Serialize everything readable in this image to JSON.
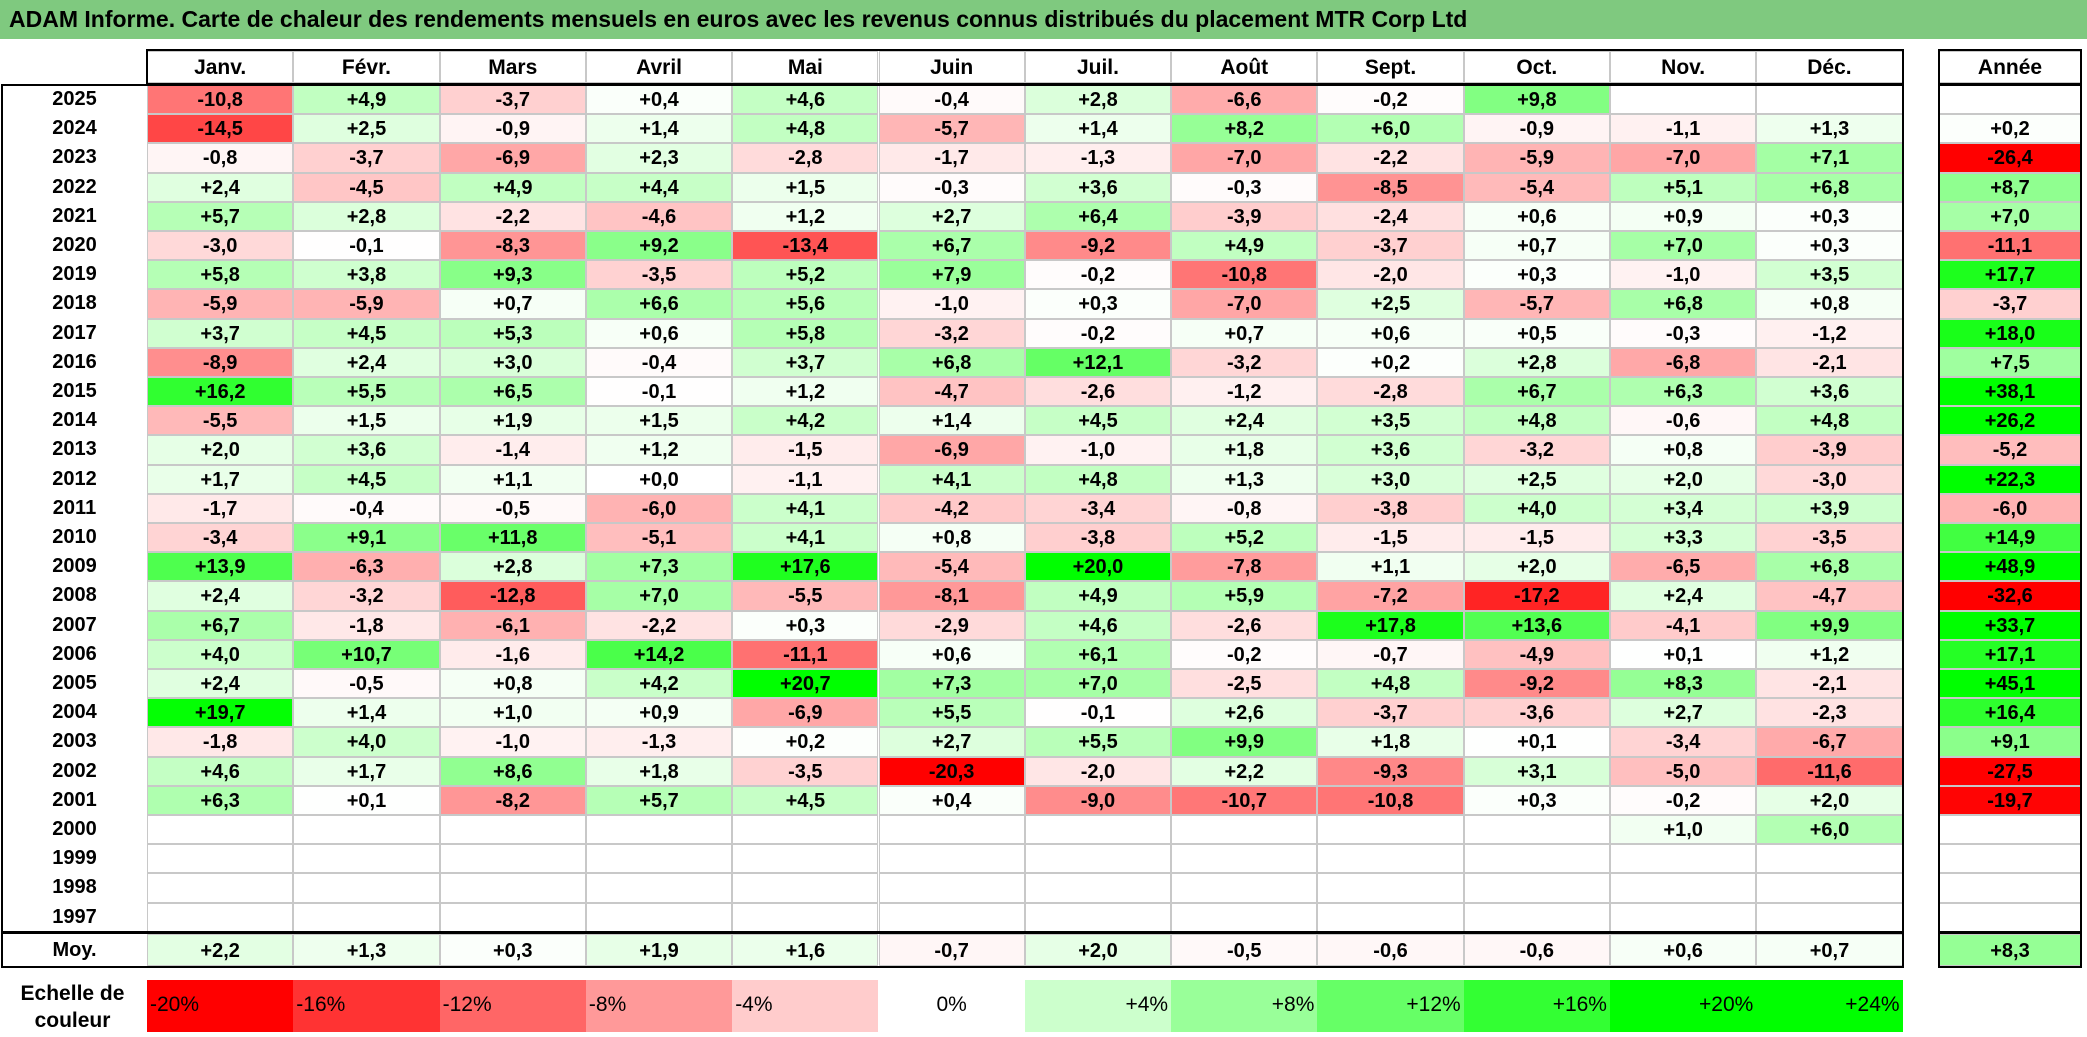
{
  "title": "ADAM Informe. Carte de chaleur des rendements mensuels en euros avec les revenus connus distribués du placement MTR Corp Ltd",
  "months": [
    "Janv.",
    "Févr.",
    "Mars",
    "Avril",
    "Mai",
    "Juin",
    "Juil.",
    "Août",
    "Sept.",
    "Oct.",
    "Nov.",
    "Déc."
  ],
  "year_header": "Année",
  "avg_label": "Moy.",
  "scale_label": "Echelle de couleur",
  "chart_data": {
    "type": "heatmap",
    "title": "ADAM Informe. Carte de chaleur des rendements mensuels en euros avec les revenus connus distribués du placement MTR Corp Ltd",
    "columns": [
      "Janv.",
      "Févr.",
      "Mars",
      "Avril",
      "Mai",
      "Juin",
      "Juil.",
      "Août",
      "Sept.",
      "Oct.",
      "Nov.",
      "Déc.",
      "Année"
    ],
    "rows": [
      {
        "year": "2025",
        "values": [
          -10.8,
          4.9,
          -3.7,
          0.4,
          4.6,
          -0.4,
          2.8,
          -6.6,
          -0.2,
          9.8,
          null,
          null
        ],
        "annual": null
      },
      {
        "year": "2024",
        "values": [
          -14.5,
          2.5,
          -0.9,
          1.4,
          4.8,
          -5.7,
          1.4,
          8.2,
          6.0,
          -0.9,
          -1.1,
          1.3
        ],
        "annual": 0.2
      },
      {
        "year": "2023",
        "values": [
          -0.8,
          -3.7,
          -6.9,
          2.3,
          -2.8,
          -1.7,
          -1.3,
          -7.0,
          -2.2,
          -5.9,
          -7.0,
          7.1
        ],
        "annual": -26.4
      },
      {
        "year": "2022",
        "values": [
          2.4,
          -4.5,
          4.9,
          4.4,
          1.5,
          -0.3,
          3.6,
          -0.3,
          -8.5,
          -5.4,
          5.1,
          6.8
        ],
        "annual": 8.7
      },
      {
        "year": "2021",
        "values": [
          5.7,
          2.8,
          -2.2,
          -4.6,
          1.2,
          2.7,
          6.4,
          -3.9,
          -2.4,
          0.6,
          0.9,
          0.3
        ],
        "annual": 7.0
      },
      {
        "year": "2020",
        "values": [
          -3.0,
          -0.1,
          -8.3,
          9.2,
          -13.4,
          6.7,
          -9.2,
          4.9,
          -3.7,
          0.7,
          7.0,
          0.3
        ],
        "annual": -11.1
      },
      {
        "year": "2019",
        "values": [
          5.8,
          3.8,
          9.3,
          -3.5,
          5.2,
          7.9,
          -0.2,
          -10.8,
          -2.0,
          0.3,
          -1.0,
          3.5
        ],
        "annual": 17.7
      },
      {
        "year": "2018",
        "values": [
          -5.9,
          -5.9,
          0.7,
          6.6,
          5.6,
          -1.0,
          0.3,
          -7.0,
          2.5,
          -5.7,
          6.8,
          0.8
        ],
        "annual": -3.7
      },
      {
        "year": "2017",
        "values": [
          3.7,
          4.5,
          5.3,
          0.6,
          5.8,
          -3.2,
          -0.2,
          0.7,
          0.6,
          0.5,
          -0.3,
          -1.2
        ],
        "annual": 18.0
      },
      {
        "year": "2016",
        "values": [
          -8.9,
          2.4,
          3.0,
          -0.4,
          3.7,
          6.8,
          12.1,
          -3.2,
          0.2,
          2.8,
          -6.8,
          -2.1
        ],
        "annual": 7.5
      },
      {
        "year": "2015",
        "values": [
          16.2,
          5.5,
          6.5,
          -0.1,
          1.2,
          -4.7,
          -2.6,
          -1.2,
          -2.8,
          6.7,
          6.3,
          3.6
        ],
        "annual": 38.1
      },
      {
        "year": "2014",
        "values": [
          -5.5,
          1.5,
          1.9,
          1.5,
          4.2,
          1.4,
          4.5,
          2.4,
          3.5,
          4.8,
          -0.6,
          4.8
        ],
        "annual": 26.2
      },
      {
        "year": "2013",
        "values": [
          2.0,
          3.6,
          -1.4,
          1.2,
          -1.5,
          -6.9,
          -1.0,
          1.8,
          3.6,
          -3.2,
          0.8,
          -3.9
        ],
        "annual": -5.2
      },
      {
        "year": "2012",
        "values": [
          1.7,
          4.5,
          1.1,
          0.0,
          -1.1,
          4.1,
          4.8,
          1.3,
          3.0,
          2.5,
          2.0,
          -3.0
        ],
        "annual": 22.3
      },
      {
        "year": "2011",
        "values": [
          -1.7,
          -0.4,
          -0.5,
          -6.0,
          4.1,
          -4.2,
          -3.4,
          -0.8,
          -3.8,
          4.0,
          3.4,
          3.9
        ],
        "annual": -6.0
      },
      {
        "year": "2010",
        "values": [
          -3.4,
          9.1,
          11.8,
          -5.1,
          4.1,
          0.8,
          -3.8,
          5.2,
          -1.5,
          -1.5,
          3.3,
          -3.5
        ],
        "annual": 14.9
      },
      {
        "year": "2009",
        "values": [
          13.9,
          -6.3,
          2.8,
          7.3,
          17.6,
          -5.4,
          20.0,
          -7.8,
          1.1,
          2.0,
          -6.5,
          6.8
        ],
        "annual": 48.9
      },
      {
        "year": "2008",
        "values": [
          2.4,
          -3.2,
          -12.8,
          7.0,
          -5.5,
          -8.1,
          4.9,
          5.9,
          -7.2,
          -17.2,
          2.4,
          -4.7
        ],
        "annual": -32.6
      },
      {
        "year": "2007",
        "values": [
          6.7,
          -1.8,
          -6.1,
          -2.2,
          0.3,
          -2.9,
          4.6,
          -2.6,
          17.8,
          13.6,
          -4.1,
          9.9
        ],
        "annual": 33.7
      },
      {
        "year": "2006",
        "values": [
          4.0,
          10.7,
          -1.6,
          14.2,
          -11.1,
          0.6,
          6.1,
          -0.2,
          -0.7,
          -4.9,
          0.1,
          1.2
        ],
        "annual": 17.1
      },
      {
        "year": "2005",
        "values": [
          2.4,
          -0.5,
          0.8,
          4.2,
          20.7,
          7.3,
          7.0,
          -2.5,
          4.8,
          -9.2,
          8.3,
          -2.1
        ],
        "annual": 45.1
      },
      {
        "year": "2004",
        "values": [
          19.7,
          1.4,
          1.0,
          0.9,
          -6.9,
          5.5,
          -0.1,
          2.6,
          -3.7,
          -3.6,
          2.7,
          -2.3
        ],
        "annual": 16.4
      },
      {
        "year": "2003",
        "values": [
          -1.8,
          4.0,
          -1.0,
          -1.3,
          0.2,
          2.7,
          5.5,
          9.9,
          1.8,
          0.1,
          -3.4,
          -6.7
        ],
        "annual": 9.1
      },
      {
        "year": "2002",
        "values": [
          4.6,
          1.7,
          8.6,
          1.8,
          -3.5,
          -20.3,
          -2.0,
          2.2,
          -9.3,
          3.1,
          -5.0,
          -11.6
        ],
        "annual": -27.5
      },
      {
        "year": "2001",
        "values": [
          6.3,
          0.1,
          -8.2,
          5.7,
          4.5,
          0.4,
          -9.0,
          -10.7,
          -10.8,
          0.3,
          -0.2,
          2.0
        ],
        "annual": -19.7
      },
      {
        "year": "2000",
        "values": [
          null,
          null,
          null,
          null,
          null,
          null,
          null,
          null,
          null,
          null,
          1.0,
          6.0
        ],
        "annual": null
      },
      {
        "year": "1999",
        "values": [
          null,
          null,
          null,
          null,
          null,
          null,
          null,
          null,
          null,
          null,
          null,
          null
        ],
        "annual": null
      },
      {
        "year": "1998",
        "values": [
          null,
          null,
          null,
          null,
          null,
          null,
          null,
          null,
          null,
          null,
          null,
          null
        ],
        "annual": null
      },
      {
        "year": "1997",
        "values": [
          null,
          null,
          null,
          null,
          null,
          null,
          null,
          null,
          null,
          null,
          null,
          null
        ],
        "annual": null
      }
    ],
    "averages": [
      2.2,
      1.3,
      0.3,
      1.9,
      1.6,
      -0.7,
      2.0,
      -0.5,
      -0.6,
      -0.6,
      0.6,
      0.7
    ],
    "average_annual": 8.3,
    "color_scale": {
      "steps": [
        "-20%",
        "-16%",
        "-12%",
        "-8%",
        "-4%",
        "0%",
        "+4%",
        "+8%",
        "+12%",
        "+16%",
        "+20%",
        "+24%"
      ],
      "step_values": [
        -20,
        -16,
        -12,
        -8,
        -4,
        0,
        4,
        8,
        12,
        16,
        20,
        24
      ],
      "negative_color": "#ff0000",
      "positive_color": "#00ff00",
      "neutral_color": "#ffffff"
    }
  }
}
